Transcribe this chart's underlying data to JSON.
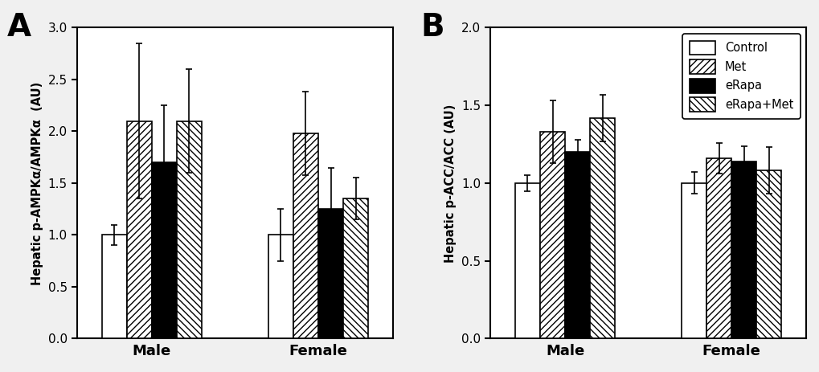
{
  "panel_A": {
    "title": "A",
    "ylabel": "Hepatic p-AMPKα/AMPKα  (AU)",
    "ylim": [
      0.0,
      3.0
    ],
    "yticks": [
      0.0,
      0.5,
      1.0,
      1.5,
      2.0,
      2.5,
      3.0
    ],
    "groups": [
      "Male",
      "Female"
    ],
    "conditions": [
      "Control",
      "Met",
      "eRapa",
      "eRapa+Met"
    ],
    "values": [
      [
        1.0,
        2.1,
        1.7,
        2.1
      ],
      [
        1.0,
        1.98,
        1.25,
        1.35
      ]
    ],
    "errors": [
      [
        0.1,
        0.75,
        0.55,
        0.5
      ],
      [
        0.25,
        0.4,
        0.4,
        0.2
      ]
    ]
  },
  "panel_B": {
    "title": "B",
    "ylabel": "Hepatic p-ACC/ACC (AU)",
    "ylim": [
      0.0,
      2.0
    ],
    "yticks": [
      0.0,
      0.5,
      1.0,
      1.5,
      2.0
    ],
    "groups": [
      "Male",
      "Female"
    ],
    "conditions": [
      "Control",
      "Met",
      "eRapa",
      "eRapa+Met"
    ],
    "values": [
      [
        1.0,
        1.33,
        1.2,
        1.42
      ],
      [
        1.0,
        1.16,
        1.14,
        1.08
      ]
    ],
    "errors": [
      [
        0.05,
        0.2,
        0.08,
        0.15
      ],
      [
        0.07,
        0.1,
        0.1,
        0.15
      ]
    ],
    "legend_labels": [
      "Control",
      "Met",
      "eRapa",
      "eRapa+Met"
    ]
  },
  "bar_width": 0.15,
  "edge_color": "#000000",
  "error_capsize": 3,
  "error_linewidth": 1.2,
  "bar_linewidth": 1.2,
  "xlabel_fontsize": 13,
  "ylabel_fontsize": 10.5,
  "tick_fontsize": 11,
  "title_fontsize": 24,
  "legend_fontsize": 10.5,
  "background_color": "#f0f0f0",
  "axes_facecolor": "#ffffff"
}
